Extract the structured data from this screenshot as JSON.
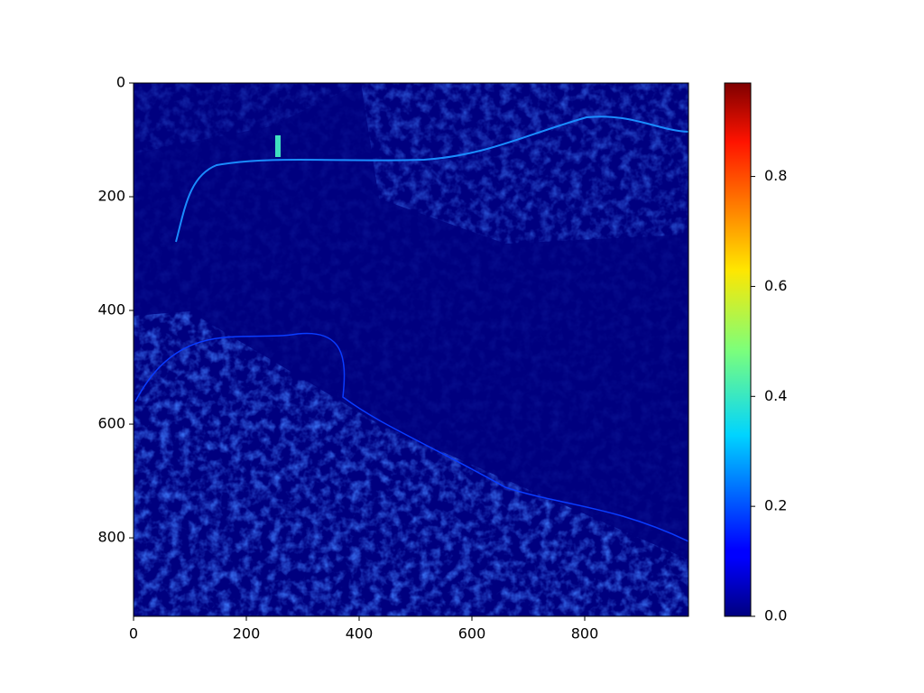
{
  "chart_data": {
    "type": "heatmap",
    "colormap": "jet",
    "xlim": [
      0,
      984
    ],
    "ylim": [
      938,
      0
    ],
    "xticks": [
      0,
      200,
      400,
      600,
      800
    ],
    "yticks": [
      0,
      200,
      400,
      600,
      800
    ],
    "colorbar": {
      "lim": [
        0,
        0.97
      ],
      "ticks": [
        {
          "value": 0,
          "label": "0.0"
        },
        {
          "value": 0.2,
          "label": "0.2"
        },
        {
          "value": 0.4,
          "label": "0.4"
        },
        {
          "value": 0.6,
          "label": "0.6"
        },
        {
          "value": 0.8,
          "label": "0.8"
        }
      ]
    }
  }
}
